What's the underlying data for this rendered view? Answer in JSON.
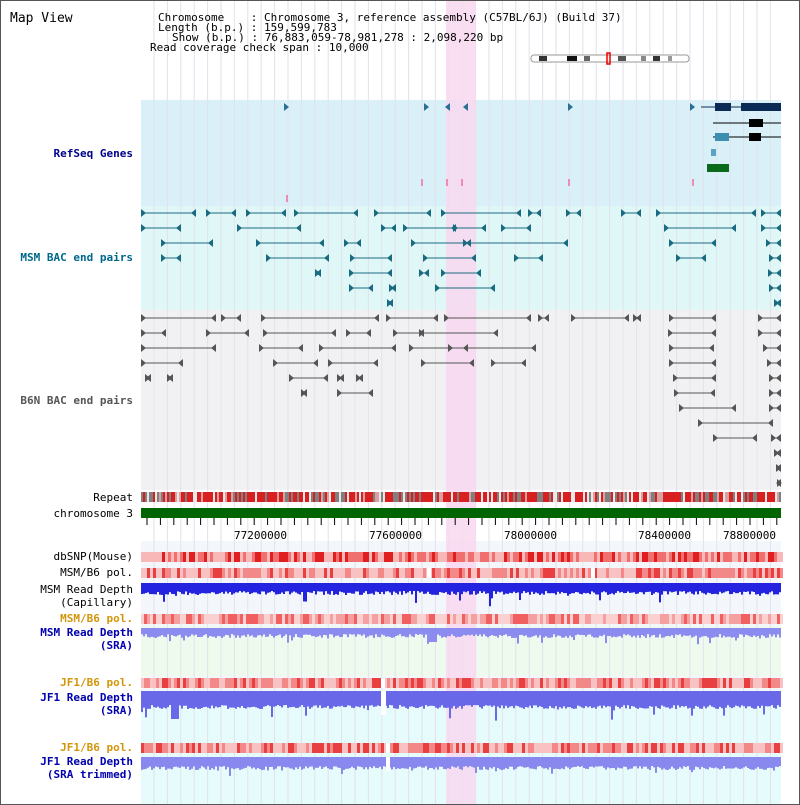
{
  "map_title": "Map View",
  "info": {
    "chromosome_label": "Chromosome",
    "chromosome_value": "Chromosome 3, reference assembly (C57BL/6J) (Build 37)",
    "length_label": "Length (b.p.)",
    "length_value": "159,599,783",
    "show_label": "Show (b.p.)",
    "show_value": "76,883,059-78,981,278 : 2,098,220 bp",
    "coverage_label": "Read coverage check span",
    "coverage_value": "10,000"
  },
  "tracks": {
    "refseq": "RefSeq Genes",
    "msm_bac": "MSM BAC end pairs",
    "b6n_bac": "B6N BAC end pairs",
    "repeat": "Repeat",
    "chromosome": "chromosome 3",
    "dbsnp": "dbSNP(Mouse)",
    "msm_b6_pol_1": "MSM/B6 pol.",
    "msm_depth_cap_1": "MSM Read Depth",
    "msm_depth_cap_2": "(Capillary)",
    "msm_b6_pol_2": "MSM/B6 pol.",
    "msm_depth_sra_1": "MSM Read Depth",
    "msm_depth_sra_2": "(SRA)",
    "jf1_b6_pol_1": "JF1/B6 pol.",
    "jf1_depth_sra_1": "JF1 Read Depth",
    "jf1_depth_sra_2": "(SRA)",
    "jf1_b6_pol_2": "JF1/B6 pol.",
    "jf1_depth_trim_1": "JF1 Read Depth",
    "jf1_depth_trim_2": "(SRA trimmed)"
  },
  "axis_ticks": [
    "77200000",
    "77600000",
    "78000000",
    "78400000",
    "78800000"
  ],
  "colors": {
    "refseq_bg": "#d9f0f8",
    "msm_bg": "#e0f7f8",
    "b6n_bg": "#f1f1f4",
    "highlight": "#f8d8f0",
    "chromosome_bar": "#006400",
    "depth_blue": "#3030e0",
    "pol_red": "#e03030"
  }
}
